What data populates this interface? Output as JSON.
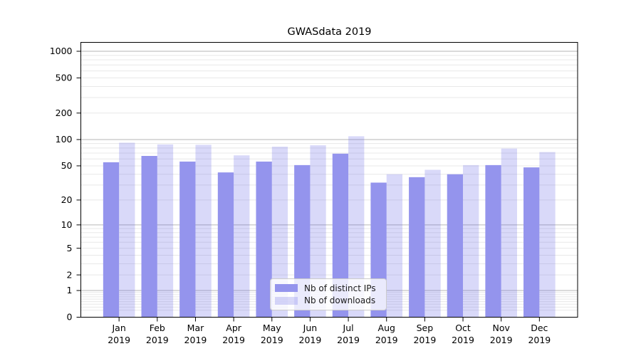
{
  "chart_data": {
    "type": "bar",
    "title": "GWASdata 2019",
    "categories": [
      "Jan 2019",
      "Feb 2019",
      "Mar 2019",
      "Apr 2019",
      "May 2019",
      "Jun 2019",
      "Jul 2019",
      "Aug 2019",
      "Sep 2019",
      "Oct 2019",
      "Nov 2019",
      "Dec 2019"
    ],
    "series": [
      {
        "name": "Nb of distinct IPs",
        "color": "#9494ed",
        "values": [
          55,
          65,
          56,
          42,
          56,
          51,
          69,
          32,
          37,
          40,
          51,
          48
        ]
      },
      {
        "name": "Nb of downloads",
        "color": "rgba(102,102,230,0.25)",
        "values": [
          92,
          88,
          87,
          66,
          83,
          86,
          109,
          40,
          45,
          51,
          79,
          72
        ]
      }
    ],
    "xlabel": "",
    "ylabel": "",
    "yscale": "log1p",
    "ylim": [
      0,
      1200
    ],
    "y_ticks": [
      0,
      1,
      2,
      5,
      10,
      20,
      50,
      100,
      200,
      500,
      1000
    ],
    "y_major_gridlines": [
      1,
      10,
      100,
      1000
    ],
    "y_minor_grid_subs": [
      2,
      3,
      4,
      5,
      6,
      7,
      8,
      9
    ],
    "y_minor_grid_decades": [
      0.1,
      1,
      10,
      100
    ],
    "grid": true,
    "legend_position": "lower center",
    "colors": {
      "background": "#ffffff",
      "axis": "#000000",
      "text": "#000000",
      "grid_major": "#b6b6b6",
      "grid_minor": "#e8e8e8",
      "legend_border": "#cccccc",
      "legend_bg": "rgba(255,255,255,0.8)"
    }
  }
}
